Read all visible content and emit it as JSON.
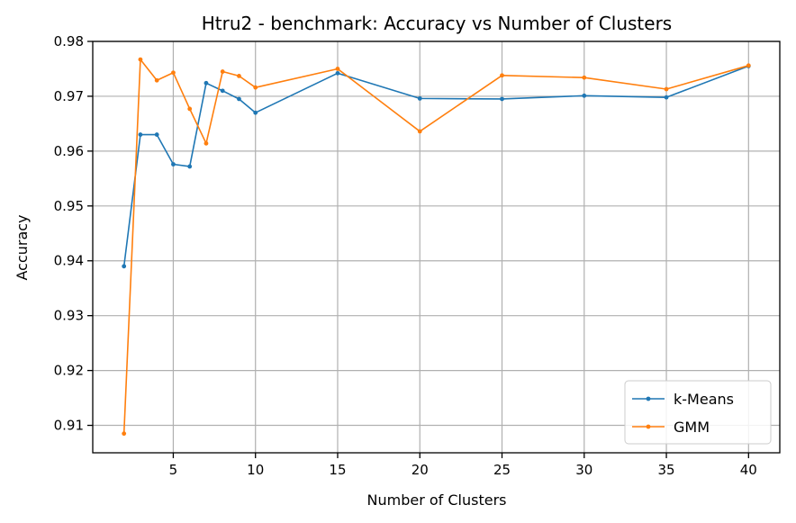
{
  "chart_data": {
    "type": "line",
    "title": "Htru2 - benchmark: Accuracy vs Number of Clusters",
    "xlabel": "Number of Clusters",
    "ylabel": "Accuracy",
    "xlim": [
      0.1,
      41.9
    ],
    "ylim": [
      0.905,
      0.98
    ],
    "xticks": [
      5,
      10,
      15,
      20,
      25,
      30,
      35,
      40
    ],
    "yticks": [
      0.91,
      0.92,
      0.93,
      0.94,
      0.95,
      0.96,
      0.97,
      0.98
    ],
    "grid": true,
    "legend_position": "lower-right",
    "x": [
      2,
      3,
      4,
      5,
      6,
      7,
      8,
      9,
      10,
      15,
      20,
      25,
      30,
      35,
      40
    ],
    "series": [
      {
        "name": "k-Means",
        "color": "#1f77b4",
        "values": [
          0.939,
          0.963,
          0.963,
          0.9576,
          0.9572,
          0.9724,
          0.971,
          0.9695,
          0.967,
          0.9742,
          0.9696,
          0.9695,
          0.9701,
          0.9698,
          0.9755
        ]
      },
      {
        "name": "GMM",
        "color": "#ff7f0e",
        "values": [
          0.9085,
          0.9767,
          0.9729,
          0.9743,
          0.9677,
          0.9614,
          0.9745,
          0.9737,
          0.9716,
          0.975,
          0.9636,
          0.9738,
          0.9734,
          0.9713,
          0.9756
        ]
      }
    ]
  }
}
